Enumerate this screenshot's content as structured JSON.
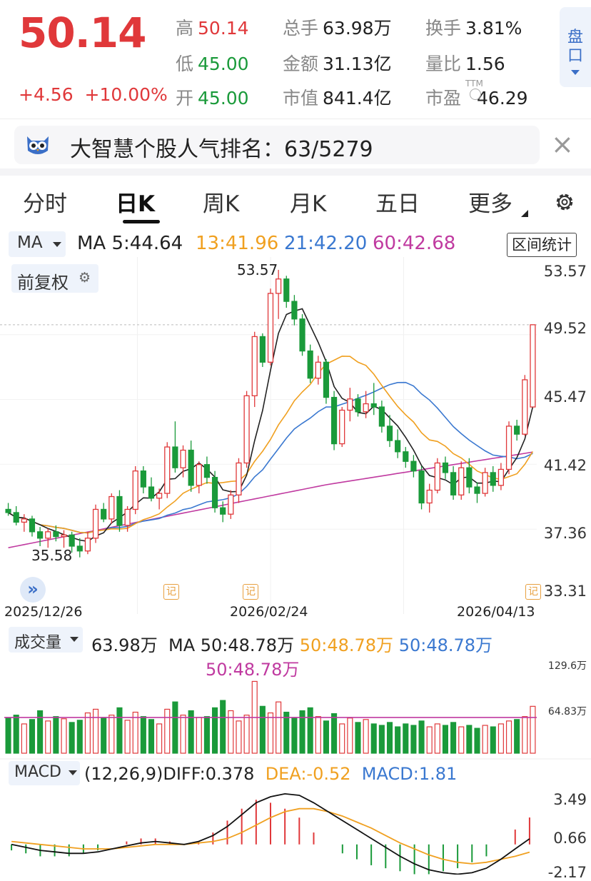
{
  "quote": {
    "price": "50.14",
    "change": "+4.56",
    "change_pct": "+10.00%",
    "rows": [
      [
        {
          "label": "高",
          "value": "50.14",
          "color": "red"
        },
        {
          "label": "总手",
          "value": "63.98万",
          "color": "dark"
        },
        {
          "label": "换手",
          "value": "3.81%",
          "color": "dark"
        }
      ],
      [
        {
          "label": "低",
          "value": "45.00",
          "color": "green"
        },
        {
          "label": "金额",
          "value": "31.13亿",
          "color": "dark"
        },
        {
          "label": "量比",
          "value": "1.56",
          "color": "dark"
        }
      ],
      [
        {
          "label": "开",
          "value": "45.00",
          "color": "green"
        },
        {
          "label": "市值",
          "value": "841.4亿",
          "color": "dark"
        },
        {
          "label": "市盈",
          "value": "46.29",
          "color": "dark"
        }
      ]
    ],
    "ttm_tag": "TTM",
    "pankou_label": "盘口"
  },
  "banner": {
    "text": "大智慧个股人气排名：63/5279",
    "close": "×"
  },
  "tabs": [
    "分时",
    "日K",
    "周K",
    "月K",
    "五日",
    "更多"
  ],
  "active_tab": 1,
  "ma_row": {
    "selector": "MA",
    "ma5": "MA 5:44.64",
    "ma13": "13:41.96",
    "ma21": "21:42.20",
    "ma60": "60:42.68",
    "range_button": "区间统计"
  },
  "adjust_label": "前复权",
  "price_axis": [
    "53.57",
    "49.52",
    "45.47",
    "41.42",
    "37.36",
    "33.31"
  ],
  "high_label": "53.57",
  "low_label": "35.58",
  "date_labels": [
    "2025/12/26",
    "2026/02/24",
    "2026/04/13"
  ],
  "marker_label": "记",
  "volume": {
    "selector": "成交量",
    "value": "63.98万",
    "ma50_a": "MA 50:48.78万",
    "ma50_b": "50:48.78万",
    "ma50_c": "50:48.78万",
    "ma50_d": "50:48.78万",
    "axis": [
      "129.6万",
      "64.83万"
    ]
  },
  "macd": {
    "selector": "MACD",
    "params": "(12,26,9)DIFF:0.378",
    "dea": "DEA:-0.52",
    "macd": "MACD:1.81",
    "axis": [
      "3.49",
      "0.66",
      "-2.17"
    ]
  },
  "colors": {
    "up": "#e0383a",
    "down": "#1a9a3a",
    "ma5": "#222222",
    "ma13": "#f0a020",
    "ma21": "#3a78d0",
    "ma60": "#c03aa0",
    "accent": "#3b6fc7"
  },
  "chart_data": [
    {
      "type": "candlestick",
      "title": "",
      "x_range": [
        "2025/12/26",
        "2026/04/13"
      ],
      "ylim": [
        33.31,
        53.57
      ],
      "annotated_high": 53.57,
      "annotated_low": 35.58,
      "last_bar": {
        "open": 45.0,
        "high": 50.14,
        "low": 45.0,
        "close": 50.14
      },
      "candles": [
        [
          38.6,
          39.0,
          38.2,
          38.4
        ],
        [
          38.4,
          38.8,
          37.6,
          37.8
        ],
        [
          37.8,
          38.3,
          37.2,
          38.0
        ],
        [
          38.0,
          38.2,
          36.9,
          37.2
        ],
        [
          37.2,
          37.5,
          36.3,
          36.8
        ],
        [
          36.8,
          37.4,
          36.2,
          37.2
        ],
        [
          37.2,
          37.6,
          36.6,
          36.9
        ],
        [
          36.9,
          37.3,
          36.2,
          37.0
        ],
        [
          37.0,
          37.2,
          35.9,
          36.3
        ],
        [
          36.3,
          36.8,
          35.6,
          36.0
        ],
        [
          36.0,
          37.2,
          35.8,
          36.8
        ],
        [
          36.8,
          38.9,
          36.5,
          38.6
        ],
        [
          38.6,
          39.0,
          37.8,
          38.0
        ],
        [
          38.0,
          39.6,
          37.7,
          39.4
        ],
        [
          39.4,
          39.8,
          37.2,
          37.6
        ],
        [
          37.6,
          38.8,
          37.2,
          38.6
        ],
        [
          38.6,
          41.3,
          38.3,
          41.0
        ],
        [
          41.0,
          41.3,
          39.6,
          40.0
        ],
        [
          40.0,
          40.6,
          39.1,
          39.3
        ],
        [
          39.3,
          39.9,
          38.6,
          39.6
        ],
        [
          39.6,
          42.8,
          39.3,
          42.5
        ],
        [
          42.5,
          44.1,
          40.9,
          41.2
        ],
        [
          41.2,
          42.6,
          40.6,
          42.3
        ],
        [
          42.3,
          42.9,
          39.7,
          40.1
        ],
        [
          40.1,
          41.6,
          39.6,
          41.4
        ],
        [
          41.4,
          41.9,
          40.2,
          40.6
        ],
        [
          40.6,
          41.0,
          38.4,
          38.7
        ],
        [
          38.7,
          39.1,
          37.8,
          38.3
        ],
        [
          38.3,
          39.8,
          38.0,
          39.5
        ],
        [
          39.5,
          41.8,
          39.0,
          41.5
        ],
        [
          41.5,
          46.0,
          41.2,
          45.7
        ],
        [
          45.7,
          49.7,
          45.0,
          49.4
        ],
        [
          49.4,
          49.6,
          47.5,
          47.8
        ],
        [
          47.8,
          52.4,
          47.6,
          52.1
        ],
        [
          52.1,
          53.57,
          50.5,
          53.0
        ],
        [
          53.0,
          53.2,
          51.2,
          51.6
        ],
        [
          51.6,
          52.0,
          50.1,
          50.5
        ],
        [
          50.5,
          50.8,
          48.2,
          48.5
        ],
        [
          48.5,
          48.9,
          46.5,
          46.8
        ],
        [
          46.8,
          48.2,
          46.4,
          47.8
        ],
        [
          47.8,
          48.0,
          45.2,
          45.6
        ],
        [
          45.6,
          46.0,
          42.3,
          42.7
        ],
        [
          42.7,
          45.0,
          42.5,
          44.8
        ],
        [
          44.8,
          46.2,
          44.1,
          45.5
        ],
        [
          45.5,
          45.8,
          44.4,
          44.7
        ],
        [
          44.7,
          46.0,
          44.3,
          45.2
        ],
        [
          45.2,
          46.5,
          44.5,
          45.0
        ],
        [
          45.0,
          45.4,
          43.4,
          43.8
        ],
        [
          43.8,
          44.5,
          42.5,
          42.9
        ],
        [
          42.9,
          43.6,
          41.8,
          42.2
        ],
        [
          42.2,
          42.5,
          41.2,
          41.6
        ],
        [
          41.6,
          42.0,
          40.6,
          41.0
        ],
        [
          41.0,
          41.3,
          38.6,
          39.0
        ],
        [
          39.0,
          40.2,
          38.4,
          39.8
        ],
        [
          39.8,
          41.8,
          39.6,
          41.5
        ],
        [
          41.5,
          41.9,
          40.5,
          40.9
        ],
        [
          40.9,
          41.3,
          39.2,
          39.5
        ],
        [
          39.5,
          41.6,
          39.2,
          41.2
        ],
        [
          41.2,
          41.8,
          39.6,
          40.0
        ],
        [
          40.0,
          40.3,
          39.0,
          39.6
        ],
        [
          39.6,
          41.2,
          39.4,
          40.9
        ],
        [
          40.9,
          41.3,
          39.7,
          40.1
        ],
        [
          40.1,
          41.5,
          39.8,
          41.1
        ],
        [
          41.1,
          44.1,
          40.8,
          43.8
        ],
        [
          43.8,
          44.2,
          42.9,
          43.3
        ],
        [
          43.3,
          47.0,
          43.2,
          46.7
        ],
        [
          45.0,
          50.14,
          45.0,
          50.14
        ]
      ]
    },
    {
      "type": "bar",
      "title": "",
      "ylim": [
        0,
        129.6
      ],
      "unit": "万",
      "last_value": 63.98,
      "ma50": 48.78,
      "values": [
        48,
        52,
        40,
        46,
        58,
        44,
        50,
        47,
        42,
        45,
        55,
        60,
        48,
        52,
        62,
        45,
        56,
        50,
        46,
        40,
        60,
        70,
        52,
        58,
        49,
        50,
        62,
        72,
        58,
        44,
        52,
        98,
        64,
        55,
        70,
        56,
        48,
        58,
        62,
        50,
        44,
        54,
        40,
        48,
        42,
        46,
        40,
        38,
        42,
        36,
        40,
        38,
        44,
        36,
        40,
        38,
        42,
        36,
        38,
        34,
        38,
        36,
        40,
        44,
        46,
        50,
        63.98
      ]
    },
    {
      "type": "line+bar",
      "title": "",
      "ylim": [
        -2.17,
        3.49
      ],
      "diff": 0.378,
      "dea": -0.52,
      "macd": 1.81,
      "series": [
        {
          "name": "DIFF",
          "values": [
            0.0,
            -0.2,
            -0.4,
            -0.5,
            -0.6,
            -0.6,
            -0.5,
            -0.3,
            -0.1,
            0.1,
            0.2,
            0.1,
            0.0,
            0.2,
            0.6,
            1.2,
            2.0,
            2.8,
            3.2,
            3.4,
            3.3,
            2.8,
            2.2,
            1.6,
            1.0,
            0.4,
            -0.2,
            -0.8,
            -1.3,
            -1.7,
            -1.9,
            -2.0,
            -1.9,
            -1.6,
            -1.0,
            -0.3,
            0.378
          ]
        },
        {
          "name": "DEA",
          "values": [
            0.2,
            0.1,
            0.0,
            -0.1,
            -0.2,
            -0.3,
            -0.3,
            -0.3,
            -0.2,
            -0.1,
            0.0,
            0.0,
            0.0,
            0.1,
            0.2,
            0.4,
            0.8,
            1.3,
            1.8,
            2.2,
            2.4,
            2.4,
            2.2,
            1.9,
            1.5,
            1.1,
            0.6,
            0.1,
            -0.3,
            -0.7,
            -1.0,
            -1.2,
            -1.3,
            -1.2,
            -1.0,
            -0.8,
            -0.52
          ]
        },
        {
          "name": "MACD",
          "values": [
            -0.4,
            -0.6,
            -0.8,
            -0.8,
            -0.8,
            -0.6,
            -0.4,
            0.0,
            0.2,
            0.4,
            0.4,
            0.2,
            0.0,
            0.2,
            0.8,
            1.6,
            2.4,
            3.0,
            2.8,
            2.4,
            1.8,
            0.8,
            0.0,
            -0.6,
            -1.0,
            -1.4,
            -1.6,
            -1.8,
            -2.0,
            -2.0,
            -1.8,
            -1.6,
            -1.2,
            -0.8,
            0.0,
            1.0,
            1.81
          ]
        }
      ]
    }
  ]
}
